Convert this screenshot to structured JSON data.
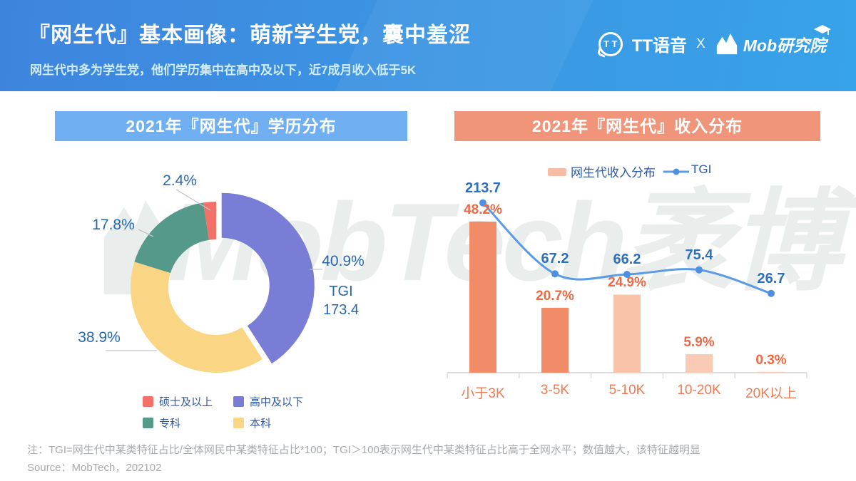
{
  "page": {
    "title": "『网生代』基本画像：萌新学生党，囊中羞涩",
    "subtitle": "网生代中多为学生党，他们学历集中在高中及以下，近7成月收入低于5K"
  },
  "brand": {
    "tt_icon_text": "T T",
    "tt_name": "TT语音",
    "separator": "X",
    "mob_name": "Mob研究院"
  },
  "watermark": {
    "text": "MobTech袤博"
  },
  "colors": {
    "banner_left": "#3E84DE",
    "banner_right": "#37A3E8",
    "edu_header_bg": "#6FAFF2",
    "income_header_bg": "#F0947A",
    "donut_label_blue": "#2667B2",
    "tgi_label_blue": "#2D6FBF",
    "bar_label_orange": "#ED6A45",
    "category_orange": "#EE7C55",
    "legend_text_blue": "#2B5CA8",
    "line_blue": "#5B9BE6",
    "axis_gray": "#D9DDE0",
    "leader_gray": "#C2C6CA",
    "footnote_gray": "#A6AAAE",
    "watermark_gray": "#E9EDEC"
  },
  "education_panel": {
    "header": "2021年『网生代』学历分布",
    "tgi_label": "TGI",
    "tgi_value": "173.4",
    "legend": [
      {
        "label": "硕士及以上",
        "color": "#F4716A"
      },
      {
        "label": "高中及以下",
        "color": "#797DD6"
      },
      {
        "label": "专科",
        "color": "#55998A"
      },
      {
        "label": "本科",
        "color": "#FAD584"
      }
    ]
  },
  "income_panel": {
    "header": "2021年『网生代』收入分布",
    "legend": [
      {
        "label": "网生代收入分布",
        "swatch_color": "#F7BCA3"
      },
      {
        "label": "TGI"
      }
    ]
  },
  "chart_data": [
    {
      "type": "pie",
      "subtype": "donut",
      "title": "2021年『网生代』学历分布",
      "unit": "%",
      "slices": [
        {
          "label": "高中及以下",
          "value": 40.9,
          "color": "#797DD6",
          "exploded": true
        },
        {
          "label": "本科",
          "value": 38.9,
          "color": "#FAD584",
          "exploded": false
        },
        {
          "label": "专科",
          "value": 17.8,
          "color": "#55998A",
          "exploded": false
        },
        {
          "label": "硕士及以上",
          "value": 2.4,
          "color": "#F4716A",
          "exploded": false
        }
      ],
      "annotation": "TGI 173.4",
      "legend_position": "bottom"
    },
    {
      "type": "bar",
      "subtype": "bar-line-combo",
      "title": "2021年『网生代』收入分布",
      "categories": [
        "小于3K",
        "3-5K",
        "5-10K",
        "10-20K",
        "20K以上"
      ],
      "series": [
        {
          "name": "网生代收入分布",
          "type": "bar",
          "unit": "%",
          "values": [
            48.2,
            20.7,
            24.9,
            5.9,
            0.3
          ],
          "bar_colors": [
            "#F28B68",
            "#F28B68",
            "#F8C3A8",
            "#F9CBB4",
            "#FACDB8"
          ]
        },
        {
          "name": "TGI",
          "type": "line",
          "values": [
            213.7,
            67.2,
            66.2,
            75.4,
            26.7
          ],
          "color": "#5B9BE6"
        }
      ],
      "legend_position": "top",
      "grid": false
    }
  ],
  "footnotes": {
    "note": "注：TGI=网生代中某类特征占比/全体网民中某类特征占比*100；TGI＞100表示网生代中某类特征占比高于全网水平；数值越大，该特征越明显",
    "source": "Source：MobTech，202102"
  }
}
